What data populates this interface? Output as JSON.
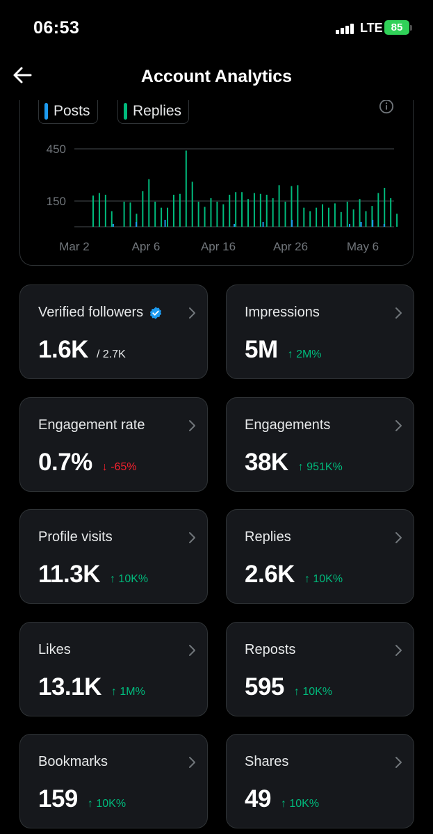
{
  "status": {
    "time": "06:53",
    "network": "LTE",
    "battery": "85"
  },
  "header": {
    "title": "Account Analytics"
  },
  "chart_legend": {
    "posts": "Posts",
    "replies": "Replies",
    "posts_color": "#1d9bf0",
    "replies_color": "#00ba7c"
  },
  "chart_data": {
    "type": "bar",
    "x_ticks": [
      "Mar 2",
      "Apr 6",
      "Apr 16",
      "Apr 26",
      "May 6"
    ],
    "y_ticks": [
      150,
      450
    ],
    "ylim": [
      0,
      500
    ],
    "grid": true,
    "series": [
      {
        "name": "Posts",
        "color": "#1d9bf0",
        "values": [
          4,
          0,
          0,
          0,
          0,
          0,
          0,
          0,
          0,
          0,
          0,
          0,
          4,
          0,
          0,
          0,
          0,
          0,
          0,
          0,
          0,
          0,
          0,
          0,
          0,
          0,
          0,
          0,
          0,
          0,
          0,
          0,
          0,
          0,
          0,
          0,
          0,
          0,
          0,
          0,
          0,
          0,
          0,
          0,
          0,
          0,
          0,
          0,
          8,
          0,
          0,
          0,
          6,
          10,
          0,
          18,
          6,
          22,
          0,
          20,
          6,
          8,
          0,
          0,
          0,
          0,
          0,
          0,
          0,
          0,
          0,
          0,
          0,
          0,
          0,
          0,
          0,
          0,
          0,
          0,
          0,
          0,
          0,
          0,
          0,
          0,
          0,
          0,
          0,
          0,
          0,
          0,
          0,
          0,
          0,
          0,
          0,
          0,
          0,
          0
        ]
      },
      {
        "name": "Replies",
        "color": "#00ba7c",
        "values": [
          180,
          195,
          0,
          185,
          0,
          0,
          90,
          0,
          0,
          0,
          0,
          0,
          0,
          0,
          0,
          0,
          0,
          0,
          0,
          0,
          0,
          0,
          0,
          0,
          0,
          0,
          0,
          0,
          0,
          0,
          0,
          0,
          0,
          0,
          0,
          0,
          0,
          0,
          0,
          0,
          0,
          0,
          0,
          0,
          0,
          0,
          0,
          0,
          0,
          0,
          0,
          0,
          0,
          0,
          0,
          0,
          0,
          0,
          0,
          0,
          0,
          0,
          0,
          0,
          0,
          0,
          0,
          0,
          0,
          0,
          0,
          0,
          0,
          0,
          0,
          0,
          0,
          0,
          0,
          0,
          0,
          0,
          0,
          0,
          0,
          0,
          0,
          0,
          0,
          0,
          0,
          0,
          0,
          0,
          0,
          0,
          0,
          0,
          0,
          0
        ]
      },
      {
        "name": "Replies (by day)",
        "color": "#00ba7c",
        "values": [
          180,
          195,
          185,
          90,
          0,
          145,
          140,
          75,
          205,
          275,
          145,
          110,
          110,
          185,
          190,
          440,
          260,
          145,
          115,
          165,
          145,
          130,
          185,
          200,
          200,
          160,
          195,
          190,
          185,
          165,
          240,
          145,
          235,
          240,
          110,
          90,
          110,
          130,
          110,
          135,
          85,
          145,
          100,
          160,
          90,
          120,
          195,
          225,
          165,
          75
        ]
      }
    ]
  },
  "cards": [
    {
      "label": "Verified followers",
      "value": "1.6K",
      "sub": "/ 2.7K",
      "change": "",
      "dir": "none"
    },
    {
      "label": "Impressions",
      "value": "5M",
      "sub": "",
      "change": "2M%",
      "dir": "up"
    },
    {
      "label": "Engagement rate",
      "value": "0.7%",
      "sub": "",
      "change": "-65%",
      "dir": "down"
    },
    {
      "label": "Engagements",
      "value": "38K",
      "sub": "",
      "change": "951K%",
      "dir": "up"
    },
    {
      "label": "Profile visits",
      "value": "11.3K",
      "sub": "",
      "change": "10K%",
      "dir": "up"
    },
    {
      "label": "Replies",
      "value": "2.6K",
      "sub": "",
      "change": "10K%",
      "dir": "up"
    },
    {
      "label": "Likes",
      "value": "13.1K",
      "sub": "",
      "change": "1M%",
      "dir": "up"
    },
    {
      "label": "Reposts",
      "value": "595",
      "sub": "",
      "change": "10K%",
      "dir": "up"
    },
    {
      "label": "Bookmarks",
      "value": "159",
      "sub": "",
      "change": "10K%",
      "dir": "up"
    },
    {
      "label": "Shares",
      "value": "49",
      "sub": "",
      "change": "10K%",
      "dir": "up"
    }
  ],
  "colors": {
    "up": "#00ba7c",
    "down": "#f4212e",
    "card_bg": "#16181c",
    "border": "#2f3336",
    "verified": "#1d9bf0"
  }
}
